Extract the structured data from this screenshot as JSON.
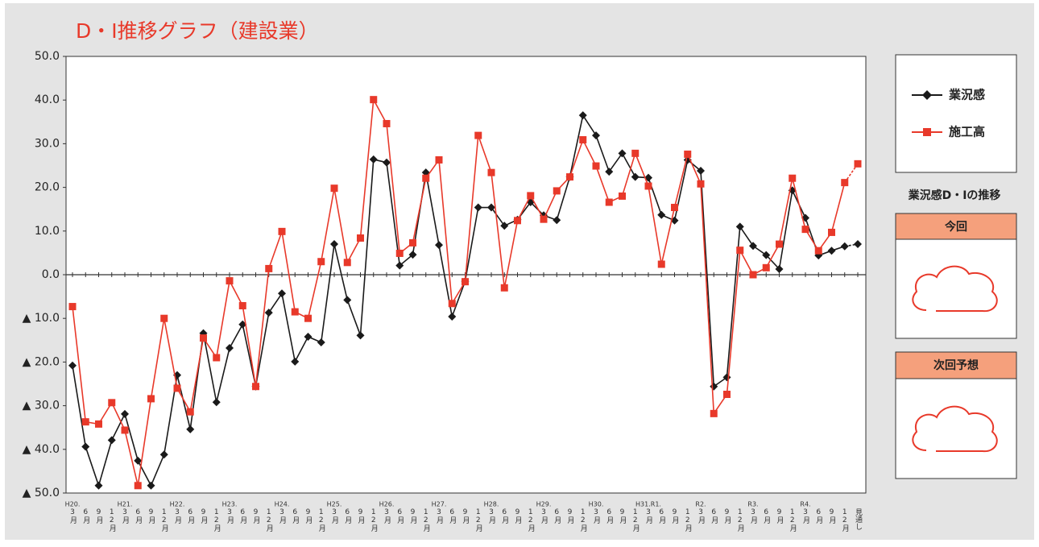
{
  "chart_data": {
    "type": "line",
    "title": "D・I推移グラフ（建設業）",
    "categories": [
      "3月",
      "6月",
      "9月",
      "12月",
      "3月",
      "6月",
      "9月",
      "12月",
      "3月",
      "6月",
      "9月",
      "12月",
      "3月",
      "6月",
      "9月",
      "12月",
      "3月",
      "6月",
      "9月",
      "12月",
      "3月",
      "6月",
      "9月",
      "12月",
      "3月",
      "6月",
      "9月",
      "12月",
      "3月",
      "6月",
      "9月",
      "12月",
      "3月",
      "6月",
      "9月",
      "12月",
      "3月",
      "6月",
      "9月",
      "12月",
      "3月",
      "6月",
      "9月",
      "12月",
      "3月",
      "6月",
      "9月",
      "12月",
      "3月",
      "6月",
      "9月",
      "12月",
      "3月",
      "6月",
      "9月",
      "12月",
      "3月",
      "6月",
      "9月",
      "12月",
      "見通し"
    ],
    "year_labels": [
      "H20.",
      null,
      null,
      null,
      "H21.",
      null,
      null,
      null,
      "H22.",
      null,
      null,
      null,
      "H23.",
      null,
      null,
      null,
      "H24.",
      null,
      null,
      null,
      "H25.",
      null,
      null,
      null,
      "H26.",
      null,
      null,
      null,
      "H27.",
      null,
      null,
      null,
      "H28.",
      null,
      null,
      null,
      "H29.",
      null,
      null,
      null,
      "H30.",
      null,
      null,
      null,
      "H31.R1.",
      null,
      null,
      null,
      "R2.",
      null,
      null,
      null,
      "R3.",
      null,
      null,
      null,
      "R4.",
      null,
      null,
      null,
      null
    ],
    "series": [
      {
        "name": "業況感",
        "color": "#1a1a1a",
        "marker": "diamond",
        "values": [
          -20.8,
          -39.4,
          -48.3,
          -37.9,
          -31.9,
          -42.6,
          -48.3,
          -41.2,
          -23.0,
          -35.4,
          -13.4,
          -29.2,
          -16.8,
          -11.4,
          -25.6,
          -8.7,
          -4.3,
          -19.9,
          -14.2,
          -15.5,
          7.0,
          -5.8,
          -13.9,
          26.4,
          25.7,
          2.1,
          4.6,
          23.4,
          6.8,
          -9.6,
          -1.5,
          15.4,
          15.4,
          11.2,
          12.6,
          16.6,
          13.6,
          12.5,
          22.4,
          36.5,
          31.9,
          23.6,
          27.8,
          22.4,
          22.2,
          13.7,
          12.4,
          26.3,
          23.8,
          -25.6,
          -23.5,
          11.0,
          6.6,
          4.5,
          1.3,
          19.3,
          13.0,
          4.4,
          5.5,
          6.5,
          7.0
        ]
      },
      {
        "name": "施工高",
        "color": "#e8392a",
        "marker": "square",
        "values": [
          -7.3,
          -33.7,
          -34.2,
          -29.3,
          -35.6,
          -48.3,
          -28.4,
          -10.0,
          -26.0,
          -31.4,
          -14.5,
          -19.0,
          -1.4,
          -7.1,
          -25.6,
          1.4,
          9.9,
          -8.5,
          -10.0,
          3.0,
          19.8,
          2.8,
          8.4,
          40.1,
          34.6,
          4.9,
          7.3,
          22.1,
          26.3,
          -6.6,
          -1.6,
          31.9,
          23.4,
          -3.0,
          12.4,
          18.1,
          12.7,
          19.2,
          22.4,
          30.9,
          24.9,
          16.6,
          18.0,
          27.8,
          20.3,
          2.4,
          15.4,
          27.6,
          20.8,
          -31.8,
          -27.4,
          5.6,
          0.0,
          1.6,
          7.0,
          22.1,
          10.4,
          5.5,
          9.7,
          21.1,
          25.4
        ]
      }
    ],
    "ylim": [
      -50,
      50
    ],
    "yticks": [
      {
        "value": 50,
        "label": "50.0"
      },
      {
        "value": 40,
        "label": "40.0"
      },
      {
        "value": 30,
        "label": "30.0"
      },
      {
        "value": 20,
        "label": "20.0"
      },
      {
        "value": 10,
        "label": "10.0"
      },
      {
        "value": 0,
        "label": "0.0"
      },
      {
        "value": -10,
        "label": "▲ 10.0"
      },
      {
        "value": -20,
        "label": "▲ 20.0"
      },
      {
        "value": -30,
        "label": "▲ 30.0"
      },
      {
        "value": -40,
        "label": "▲ 40.0"
      },
      {
        "value": -50,
        "label": "▲ 50.0"
      }
    ],
    "grid": false
  },
  "side_panel": {
    "heading": "業況感D・Iの推移",
    "current": "今回",
    "next": "次回予想"
  }
}
